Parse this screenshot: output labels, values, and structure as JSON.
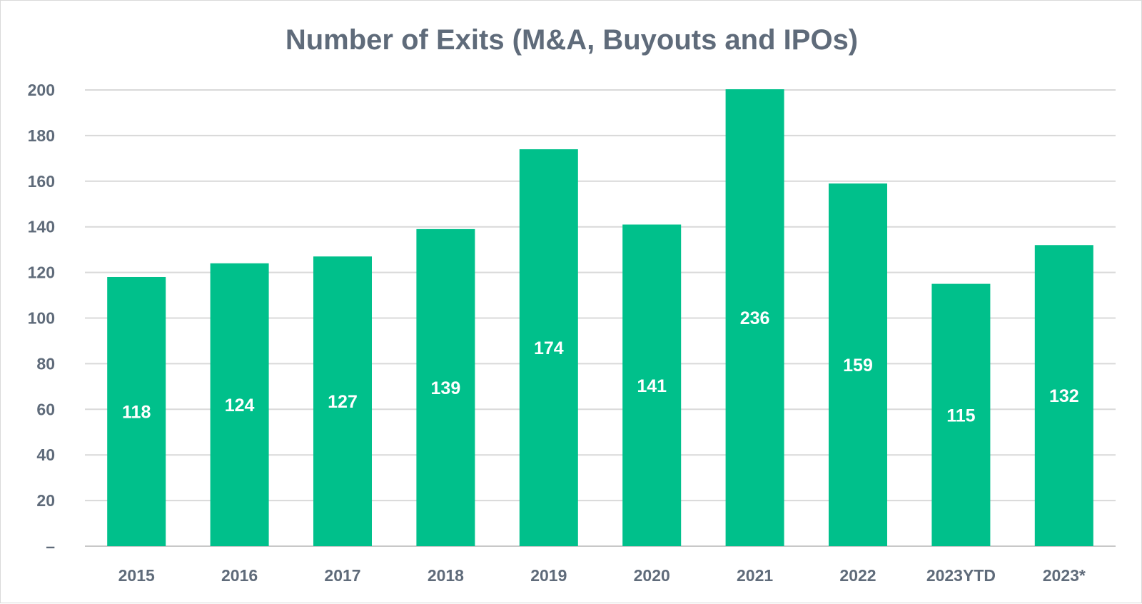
{
  "chart_data": {
    "type": "bar",
    "title": "Number of Exits (M&A, Buyouts and IPOs)",
    "xlabel": "",
    "ylabel": "",
    "categories": [
      "2015",
      "2016",
      "2017",
      "2018",
      "2019",
      "2020",
      "2021",
      "2022",
      "2023YTD",
      "2023*"
    ],
    "values": [
      118,
      124,
      127,
      139,
      174,
      141,
      236,
      159,
      115,
      132
    ],
    "data_labels": [
      "118",
      "124",
      "127",
      "139",
      "174",
      "141",
      "236",
      "159",
      "115",
      "132"
    ],
    "yticks": [
      "–",
      "20",
      "40",
      "60",
      "80",
      "100",
      "120",
      "140",
      "160",
      "180",
      "200"
    ],
    "ylim": [
      0,
      200
    ],
    "grid": true,
    "legend": "none",
    "colors": {
      "bar": "#00c08b",
      "text": "#5f6b7a",
      "label": "#ffffff",
      "grid": "#d9d9d9"
    }
  }
}
